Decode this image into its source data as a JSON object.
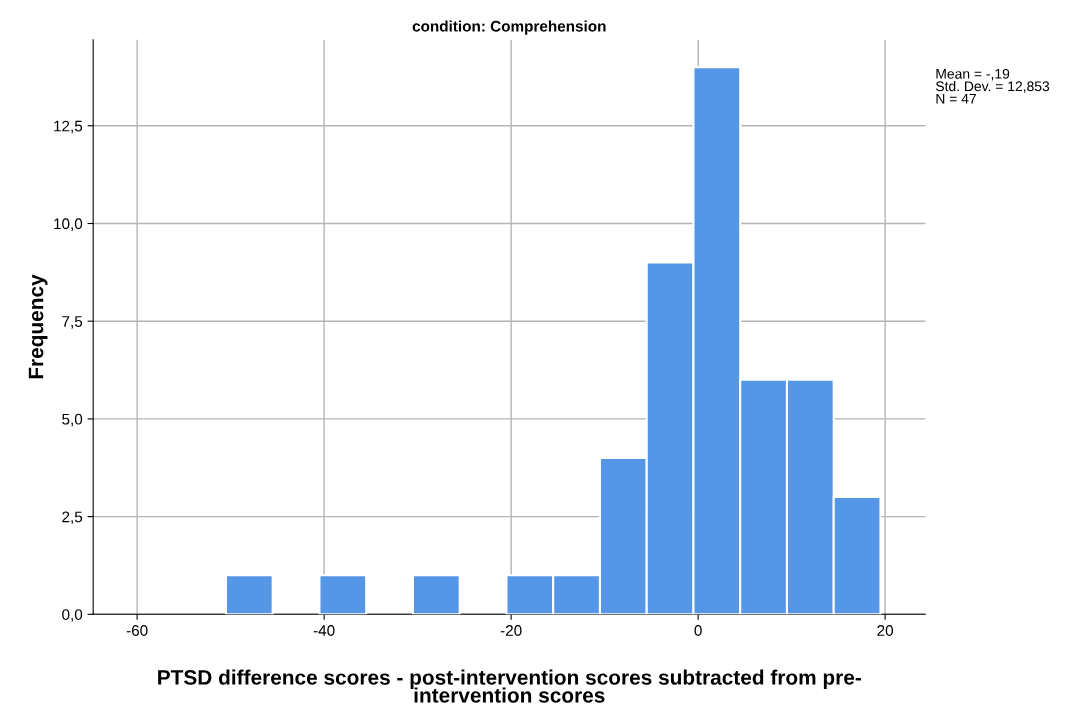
{
  "chart_data": {
    "type": "histogram",
    "title": "condition: Comprehension",
    "xlabel": "PTSD difference scores - post-intervention scores subtracted from pre-\nintervention scores",
    "ylabel": "Frequency",
    "bins": [
      -50.5,
      -45.5,
      -40.5,
      -35.5,
      -30.5,
      -25.5,
      -20.5,
      -15.5,
      -10.5,
      -5.5,
      -0.5,
      4.5,
      9.5,
      14.5,
      19.5
    ],
    "values": [
      1,
      0,
      1,
      0,
      1,
      0,
      1,
      1,
      4,
      9,
      14,
      6,
      6,
      3
    ],
    "color": "#5596e6",
    "xlim": [
      -64.7,
      24.3
    ],
    "xticks": [
      -60,
      -40,
      -20,
      0,
      20
    ],
    "ylim": [
      0,
      14.7
    ],
    "yticks": [
      {
        "value": 0,
        "label": "0,0"
      },
      {
        "value": 2.5,
        "label": "2,5"
      },
      {
        "value": 5,
        "label": "5,0"
      },
      {
        "value": 7.5,
        "label": "7,5"
      },
      {
        "value": 10,
        "label": "10,0"
      },
      {
        "value": 12.5,
        "label": "12,5"
      }
    ],
    "grid": true,
    "annotations": [
      "Mean = -,19\nStd. Dev. = 12,853\nN = 47"
    ]
  }
}
